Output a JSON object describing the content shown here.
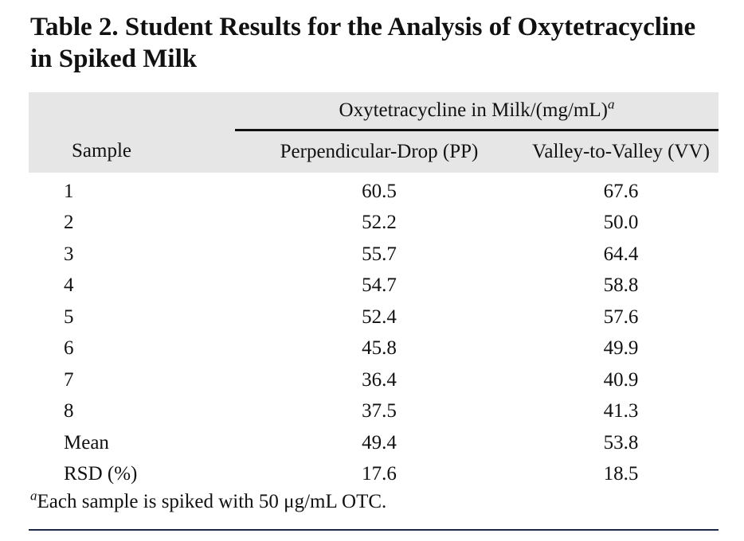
{
  "title": "Table 2. Student Results for the Analysis of Oxytetracycline in Spiked Milk",
  "table": {
    "group_header": "Oxytetracycline in Milk/(mg/mL)",
    "group_header_mark": "a",
    "columns": [
      "Sample",
      "Perpendicular-Drop (PP)",
      "Valley-to-Valley (VV)"
    ],
    "rows": [
      [
        "1",
        "60.5",
        "67.6"
      ],
      [
        "2",
        "52.2",
        "50.0"
      ],
      [
        "3",
        "55.7",
        "64.4"
      ],
      [
        "4",
        "54.7",
        "58.8"
      ],
      [
        "5",
        "52.4",
        "57.6"
      ],
      [
        "6",
        "45.8",
        "49.9"
      ],
      [
        "7",
        "36.4",
        "40.9"
      ],
      [
        "8",
        "37.5",
        "41.3"
      ],
      [
        "Mean",
        "49.4",
        "53.8"
      ],
      [
        "RSD (%)",
        "17.6",
        "18.5"
      ]
    ]
  },
  "footnote": {
    "mark": "a",
    "text": "Each sample is spiked with 50 μg/mL OTC."
  }
}
